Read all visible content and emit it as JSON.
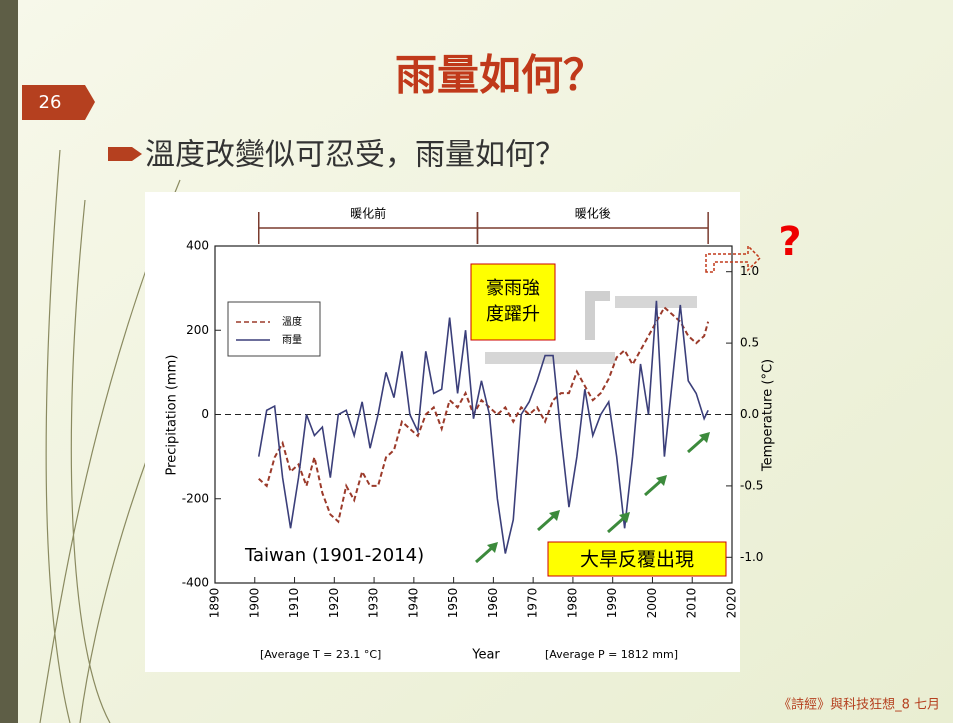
{
  "slide_number": "26",
  "title": "雨量如何？",
  "bullet": "溫度改變似可忍受，雨量如何？",
  "footer": "《詩經》與科技狂想_8 七月",
  "chart_data": {
    "type": "line",
    "ylabel": "Precipitation (mm)",
    "y2label": "Temperature (°C)",
    "xlabel": "Year",
    "notes": [
      "[Average T = 23.1 °C]",
      "[Average P = 1812 mm]"
    ],
    "annotations": [
      "Taiwan (1901-2014)",
      "豪雨強度躍升",
      "大旱反覆出現",
      "?"
    ],
    "periods": [
      {
        "label": "暖化前",
        "start": 1901,
        "end": 1956
      },
      {
        "label": "暖化後",
        "start": 1956,
        "end": 2014
      }
    ],
    "x": [
      1901,
      1903,
      1905,
      1907,
      1909,
      1911,
      1913,
      1915,
      1917,
      1919,
      1921,
      1923,
      1925,
      1927,
      1929,
      1931,
      1933,
      1935,
      1937,
      1939,
      1941,
      1943,
      1945,
      1947,
      1949,
      1951,
      1953,
      1955,
      1957,
      1959,
      1961,
      1963,
      1965,
      1967,
      1969,
      1971,
      1973,
      1975,
      1977,
      1979,
      1981,
      1983,
      1985,
      1987,
      1989,
      1991,
      1993,
      1995,
      1997,
      1999,
      2001,
      2003,
      2005,
      2007,
      2009,
      2011,
      2013,
      2014
    ],
    "series": [
      {
        "name": "溫度",
        "color": "#9b3a2a",
        "axis": "y2",
        "dashed": true,
        "values": [
          -0.45,
          -0.5,
          -0.3,
          -0.2,
          -0.4,
          -0.35,
          -0.5,
          -0.3,
          -0.55,
          -0.7,
          -0.75,
          -0.5,
          -0.6,
          -0.4,
          -0.5,
          -0.5,
          -0.3,
          -0.25,
          -0.05,
          -0.1,
          -0.15,
          0.0,
          0.05,
          -0.1,
          0.1,
          0.05,
          0.15,
          0.0,
          0.1,
          0.05,
          0.0,
          0.05,
          -0.05,
          0.05,
          0.0,
          0.05,
          -0.05,
          0.1,
          0.15,
          0.15,
          0.3,
          0.2,
          0.1,
          0.15,
          0.25,
          0.4,
          0.45,
          0.35,
          0.45,
          0.55,
          0.65,
          0.75,
          0.7,
          0.65,
          0.55,
          0.5,
          0.55,
          0.65
        ]
      },
      {
        "name": "雨量",
        "color": "#3b3f7a",
        "values": [
          -100,
          10,
          20,
          -150,
          -270,
          -150,
          0,
          -50,
          -30,
          -150,
          0,
          10,
          -50,
          30,
          -80,
          0,
          100,
          40,
          150,
          0,
          -40,
          150,
          50,
          60,
          230,
          50,
          200,
          -10,
          80,
          0,
          -200,
          -330,
          -250,
          0,
          30,
          80,
          140,
          140,
          -50,
          -220,
          -100,
          60,
          -50,
          0,
          30,
          -100,
          -270,
          -100,
          120,
          0,
          270,
          -100,
          80,
          260,
          80,
          50,
          -10,
          10
        ]
      }
    ],
    "xlim": [
      1890,
      2020
    ],
    "xticks": [
      1890,
      1900,
      1910,
      1920,
      1930,
      1940,
      1950,
      1960,
      1970,
      1980,
      1990,
      2000,
      2010,
      2020
    ],
    "ylim": [
      -400,
      400
    ],
    "yticks": [
      -400,
      -200,
      0,
      200,
      400
    ],
    "y2lim": [
      -1.18,
      1.18
    ],
    "y2ticks": [
      {
        "value": -1.0,
        "label": "-1.0"
      },
      -0.5,
      {
        "value": 0.0,
        "label": "0.0"
      },
      0.5,
      {
        "value": 1.0,
        "label": "1.0"
      }
    ]
  }
}
